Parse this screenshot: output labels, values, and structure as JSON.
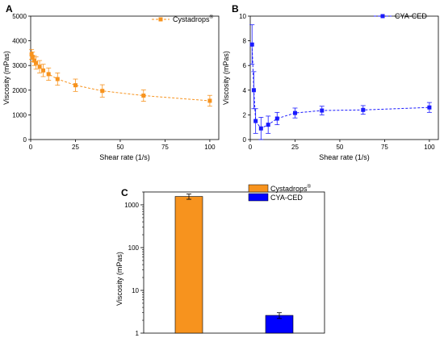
{
  "chart_data": [
    {
      "id": "A",
      "type": "line",
      "panel_label": "A",
      "xlabel": "Shear rate (1/s)",
      "ylabel": "Viscosity (mPas)",
      "xlim": [
        0,
        105
      ],
      "ylim": [
        0,
        5000
      ],
      "xticks": [
        0,
        25,
        50,
        75,
        100
      ],
      "yticks": [
        0,
        1000,
        2000,
        3000,
        4000,
        5000
      ],
      "grid": false,
      "legend_position": "top-right",
      "series": [
        {
          "name": "Cystadrops",
          "name_sup": "®",
          "color": "#f7931e",
          "marker": "square",
          "line_style": "dashed",
          "points": [
            {
              "x": 0.5,
              "y": 3450,
              "err": 200
            },
            {
              "x": 1,
              "y": 3350,
              "err": 200
            },
            {
              "x": 2,
              "y": 3200,
              "err": 200
            },
            {
              "x": 3,
              "y": 3100,
              "err": 250
            },
            {
              "x": 5,
              "y": 2950,
              "err": 250
            },
            {
              "x": 7,
              "y": 2800,
              "err": 250
            },
            {
              "x": 10,
              "y": 2650,
              "err": 250
            },
            {
              "x": 15,
              "y": 2450,
              "err": 250
            },
            {
              "x": 25,
              "y": 2200,
              "err": 250
            },
            {
              "x": 40,
              "y": 1970,
              "err": 250
            },
            {
              "x": 63,
              "y": 1780,
              "err": 230
            },
            {
              "x": 100,
              "y": 1570,
              "err": 220
            }
          ]
        }
      ]
    },
    {
      "id": "B",
      "type": "line",
      "panel_label": "B",
      "xlabel": "Shear rate (1/s)",
      "ylabel": "Viscosity (mPas)",
      "xlim": [
        0,
        105
      ],
      "ylim": [
        0,
        10
      ],
      "xticks": [
        0,
        25,
        50,
        75,
        100
      ],
      "yticks": [
        0,
        2,
        4,
        6,
        8,
        10
      ],
      "grid": false,
      "legend_position": "top-right",
      "series": [
        {
          "name": "CYA-CED",
          "color": "#1a1aff",
          "marker": "square",
          "line_style": "dashed",
          "points": [
            {
              "x": 1,
              "y": 7.7,
              "err": 1.6
            },
            {
              "x": 2,
              "y": 4.0,
              "err": 1.5
            },
            {
              "x": 3,
              "y": 1.5,
              "err": 1.0
            },
            {
              "x": 6,
              "y": 0.9,
              "err": 0.9
            },
            {
              "x": 10,
              "y": 1.2,
              "err": 0.7
            },
            {
              "x": 15,
              "y": 1.7,
              "err": 0.5
            },
            {
              "x": 25,
              "y": 2.15,
              "err": 0.4
            },
            {
              "x": 40,
              "y": 2.35,
              "err": 0.35
            },
            {
              "x": 63,
              "y": 2.4,
              "err": 0.35
            },
            {
              "x": 100,
              "y": 2.6,
              "err": 0.4
            }
          ]
        }
      ]
    },
    {
      "id": "C",
      "type": "bar",
      "panel_label": "C",
      "ylabel": "Viscosity (mPas)",
      "yscale": "log",
      "ylim": [
        1,
        2000
      ],
      "yticks": [
        1,
        10,
        100,
        1000
      ],
      "grid": false,
      "legend_position": "top-right",
      "categories": [
        "Cystadrops",
        "CYA-CED"
      ],
      "series": [
        {
          "name": "Cystadrops",
          "name_sup": "®",
          "color": "#f7931e",
          "value": 1570,
          "err": 220
        },
        {
          "name": "CYA-CED",
          "color": "#0000ff",
          "value": 2.6,
          "err": 0.4
        }
      ]
    }
  ]
}
